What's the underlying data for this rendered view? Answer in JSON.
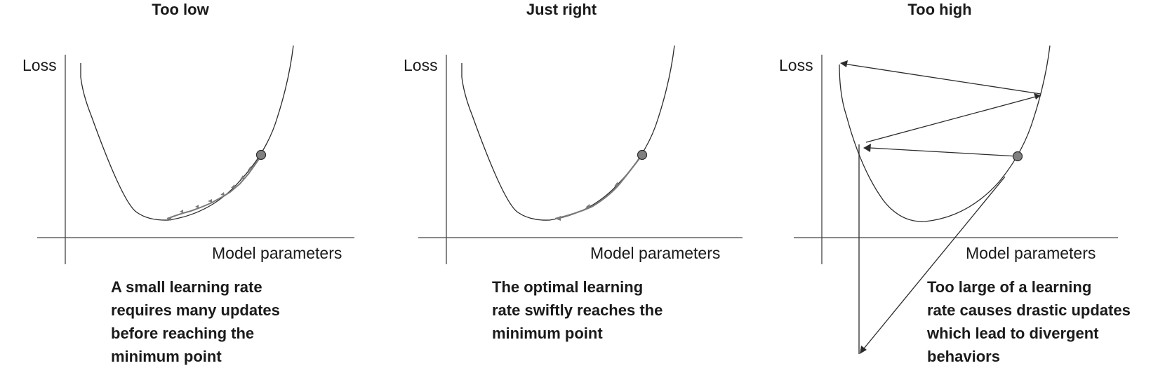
{
  "panels": [
    {
      "title": "Too low",
      "y_axis_label": "Loss",
      "x_axis_label": "Model parameters",
      "caption_lines": [
        "A small learning rate",
        "requires many updates",
        "before reaching the",
        "minimum point"
      ]
    },
    {
      "title": "Just right",
      "y_axis_label": "Loss",
      "x_axis_label": "Model parameters",
      "caption_lines": [
        "The optimal learning",
        "rate swiftly reaches the",
        "minimum point"
      ]
    },
    {
      "title": "Too high",
      "y_axis_label": "Loss",
      "x_axis_label": "Model parameters",
      "caption_lines": [
        "Too large of a learning",
        "rate causes drastic updates",
        "which lead to divergent",
        "behaviors"
      ]
    }
  ],
  "colors": {
    "curve": "#2b2b2b",
    "axis": "#444444",
    "step_arrow": "#7a7a7a",
    "start_point": "#808080"
  }
}
